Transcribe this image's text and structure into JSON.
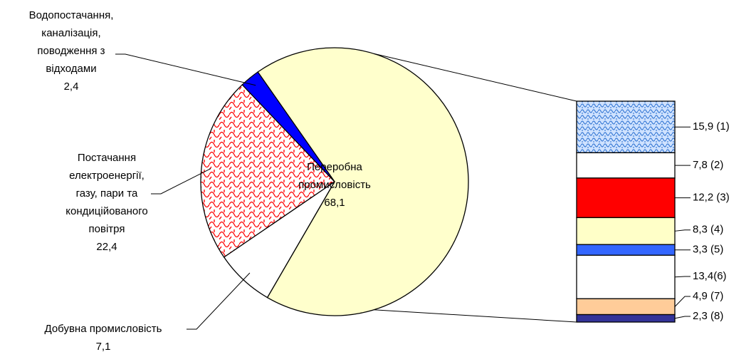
{
  "chart_data": {
    "type": "pie",
    "categories": [
      [
        "Переробна",
        "промисловість"
      ],
      [
        "Добувна промисловість"
      ],
      [
        "Постачання",
        "електроенергії,",
        "газу, пари та",
        "кондиційованого",
        "повітря"
      ],
      [
        "Водопостачання,",
        "каналізація,",
        "поводження з",
        "відходами"
      ]
    ],
    "values": [
      68.1,
      7.1,
      22.4,
      2.4
    ],
    "value_labels": [
      "68,1",
      "7,1",
      "22,4",
      "2,4"
    ],
    "colors": [
      "#ffffcc",
      "#ffffff",
      "url(#redPat)",
      "#0000ff"
    ],
    "breakdown": {
      "values": [
        15.9,
        7.8,
        12.2,
        8.3,
        3.3,
        13.4,
        4.9,
        2.3
      ],
      "value_labels": [
        "15,9 (1)",
        "7,8 (2)",
        "12,2 (3)",
        "8,3 (4)",
        "3,3 (5)",
        "13,4(6)",
        "4,9 (7)",
        "2,3 (8)"
      ],
      "colors": [
        "url(#bluePat)",
        "#ffffff",
        "#ff0000",
        "#ffffc8",
        "#3366ff",
        "#ffffff",
        "#ffcc99",
        "#333399"
      ]
    }
  }
}
